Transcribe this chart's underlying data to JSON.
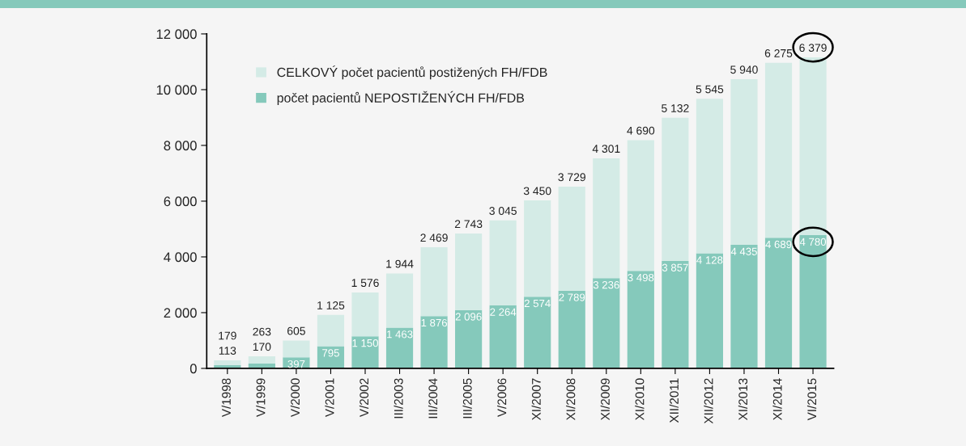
{
  "chart_data": {
    "type": "bar",
    "stacked": true,
    "categories": [
      "V/1998",
      "V/1999",
      "V/2000",
      "V/2001",
      "V/2002",
      "III/2003",
      "III/2004",
      "III/2005",
      "V/2006",
      "XI/2007",
      "XI/2008",
      "XI/2009",
      "XI/2010",
      "XII/2011",
      "XII/2012",
      "XI/2013",
      "XI/2014",
      "VI/2015"
    ],
    "series": [
      {
        "name": "počet pacientů NEPOSTIŽENÝCH FH/FDB",
        "color": "#85c9bb",
        "values": [
          113,
          170,
          397,
          795,
          1150,
          1463,
          1876,
          2096,
          2264,
          2574,
          2789,
          3236,
          3498,
          3857,
          4128,
          4435,
          4689,
          4780
        ],
        "value_labels": [
          "113",
          "170",
          "397",
          "795",
          "1 150",
          "1 463",
          "1 876",
          "2 096",
          "2 264",
          "2 574",
          "2 789",
          "3 236",
          "3 498",
          "3 857",
          "4 128",
          "4 435",
          "4 689",
          "4 780"
        ]
      },
      {
        "name": "CELKOVÝ počet pacientů postižených FH/FDB",
        "color": "#d4ebe6",
        "values": [
          179,
          263,
          605,
          1125,
          1576,
          1944,
          2469,
          2743,
          3045,
          3450,
          3729,
          4301,
          4690,
          5132,
          5545,
          5940,
          6275,
          6379
        ],
        "value_labels": [
          "179",
          "263",
          "605",
          "1 125",
          "1 576",
          "1 944",
          "2 469",
          "2 743",
          "3 045",
          "3 450",
          "3 729",
          "4 301",
          "4 690",
          "5 132",
          "5 545",
          "5 940",
          "6 275",
          "6 379"
        ]
      }
    ],
    "ylim": [
      0,
      12000
    ],
    "yticks": [
      0,
      {
        "value": 2000,
        "label": "2 000"
      },
      {
        "value": 4000,
        "label": "4 000"
      },
      {
        "value": 6000,
        "label": "6 000"
      },
      {
        "value": 8000,
        "label": "8 000"
      },
      {
        "value": 10000,
        "label": "10 000"
      },
      {
        "value": 12000,
        "label": "12 000"
      }
    ],
    "grid": false,
    "legend": "top left"
  }
}
